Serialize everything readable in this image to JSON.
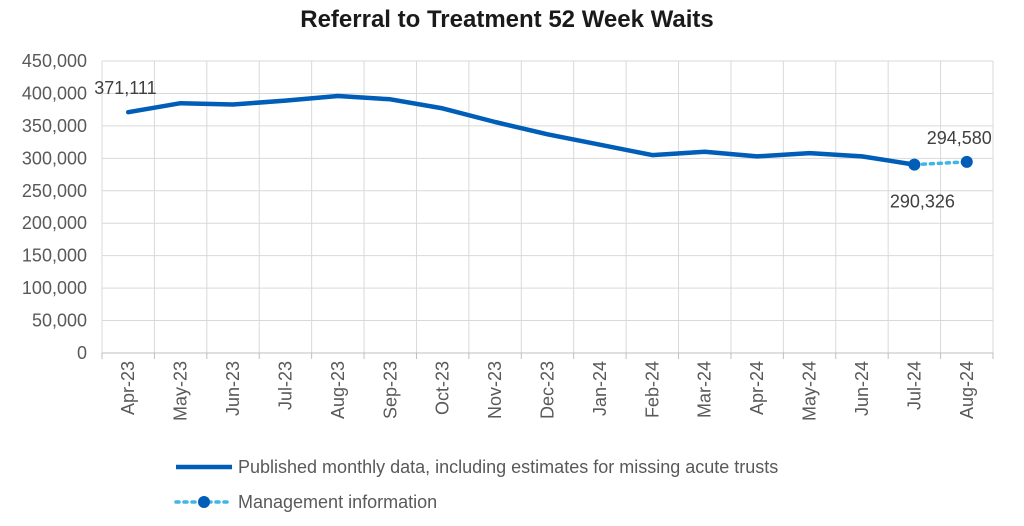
{
  "chart_data": {
    "type": "line",
    "title": "Referral to Treatment 52 Week Waits",
    "xlabel": "",
    "ylabel": "",
    "ylim": [
      0,
      450000
    ],
    "yticks": [
      0,
      50000,
      100000,
      150000,
      200000,
      250000,
      300000,
      350000,
      400000,
      450000
    ],
    "ytick_labels": [
      "0",
      "50,000",
      "100,000",
      "150,000",
      "200,000",
      "250,000",
      "300,000",
      "350,000",
      "400,000",
      "450,000"
    ],
    "categories": [
      "Apr-23",
      "May-23",
      "Jun-23",
      "Jul-23",
      "Aug-23",
      "Sep-23",
      "Oct-23",
      "Nov-23",
      "Dec-23",
      "Jan-24",
      "Feb-24",
      "Mar-24",
      "Apr-24",
      "May-24",
      "Jun-24",
      "Jul-24",
      "Aug-24"
    ],
    "grid": true,
    "legend_position": "bottom",
    "series": [
      {
        "name": "Published monthly data, including estimates for missing acute trusts",
        "style": "solid",
        "color": "#005eb8",
        "values": [
          371111,
          385000,
          383000,
          389000,
          396000,
          391000,
          377000,
          356000,
          337000,
          321000,
          305000,
          310000,
          303000,
          308000,
          303000,
          290326,
          null
        ]
      },
      {
        "name": "Management information",
        "style": "dotted-markers",
        "color": "#41b6e6",
        "marker_color": "#005eb8",
        "values": [
          null,
          null,
          null,
          null,
          null,
          null,
          null,
          null,
          null,
          null,
          null,
          null,
          null,
          null,
          null,
          290326,
          294580
        ]
      }
    ],
    "annotations": [
      {
        "category": "Apr-23",
        "value": 371111,
        "text": "371,111",
        "position": "above"
      },
      {
        "category": "Jul-24",
        "value": 290326,
        "text": "290,326",
        "position": "below"
      },
      {
        "category": "Aug-24",
        "value": 294580,
        "text": "294,580",
        "position": "above"
      }
    ]
  }
}
